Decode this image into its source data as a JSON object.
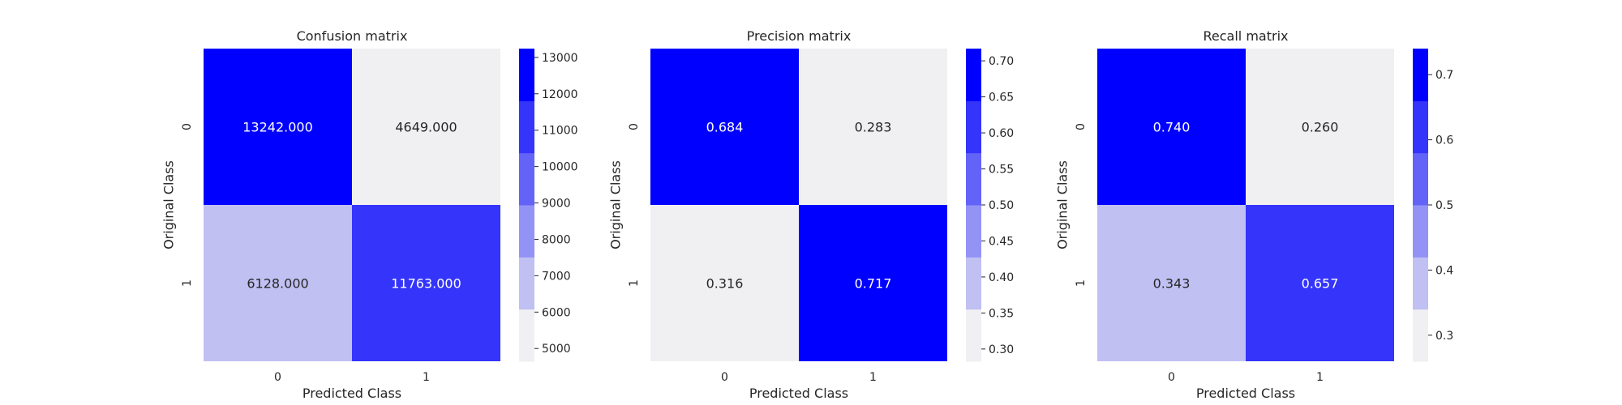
{
  "chart_data": [
    {
      "type": "heatmap",
      "title": "Confusion matrix",
      "xlabel": "Predicted Class",
      "ylabel": "Original Class",
      "x_categories": [
        "0",
        "1"
      ],
      "y_categories": [
        "0",
        "1"
      ],
      "values": [
        [
          13242.0,
          4649.0
        ],
        [
          6128.0,
          11763.0
        ]
      ],
      "cell_labels": [
        [
          "13242.000",
          "4649.000"
        ],
        [
          "6128.000",
          "11763.000"
        ]
      ],
      "colorbar": {
        "range": [
          4649,
          13242
        ],
        "ticks": [
          5000,
          6000,
          7000,
          8000,
          9000,
          10000,
          11000,
          12000,
          13000
        ],
        "tick_labels": [
          "5000",
          "6000",
          "7000",
          "8000",
          "9000",
          "10000",
          "11000",
          "12000",
          "13000"
        ]
      }
    },
    {
      "type": "heatmap",
      "title": "Precision matrix",
      "xlabel": "Predicted Class",
      "ylabel": "Original Class",
      "x_categories": [
        "0",
        "1"
      ],
      "y_categories": [
        "0",
        "1"
      ],
      "values": [
        [
          0.684,
          0.283
        ],
        [
          0.316,
          0.717
        ]
      ],
      "cell_labels": [
        [
          "0.684",
          "0.283"
        ],
        [
          "0.316",
          "0.717"
        ]
      ],
      "colorbar": {
        "range": [
          0.283,
          0.717
        ],
        "ticks": [
          0.3,
          0.35,
          0.4,
          0.45,
          0.5,
          0.55,
          0.6,
          0.65,
          0.7
        ],
        "tick_labels": [
          "0.30",
          "0.35",
          "0.40",
          "0.45",
          "0.50",
          "0.55",
          "0.60",
          "0.65",
          "0.70"
        ]
      }
    },
    {
      "type": "heatmap",
      "title": "Recall matrix",
      "xlabel": "Predicted Class",
      "ylabel": "Original Class",
      "x_categories": [
        "0",
        "1"
      ],
      "y_categories": [
        "0",
        "1"
      ],
      "values": [
        [
          0.74,
          0.26
        ],
        [
          0.343,
          0.657
        ]
      ],
      "cell_labels": [
        [
          "0.740",
          "0.260"
        ],
        [
          "0.343",
          "0.657"
        ]
      ],
      "colorbar": {
        "range": [
          0.26,
          0.74
        ],
        "ticks": [
          0.3,
          0.4,
          0.5,
          0.6,
          0.7
        ],
        "tick_labels": [
          "0.3",
          "0.4",
          "0.5",
          "0.6",
          "0.7"
        ]
      }
    }
  ],
  "palette": [
    "#f0f0f3",
    "#c0c0f3",
    "#9393f6",
    "#6363f8",
    "#3434fb",
    "#0000ff"
  ],
  "label_colors": {
    "light": "#ffffff",
    "dark": "#262626"
  }
}
